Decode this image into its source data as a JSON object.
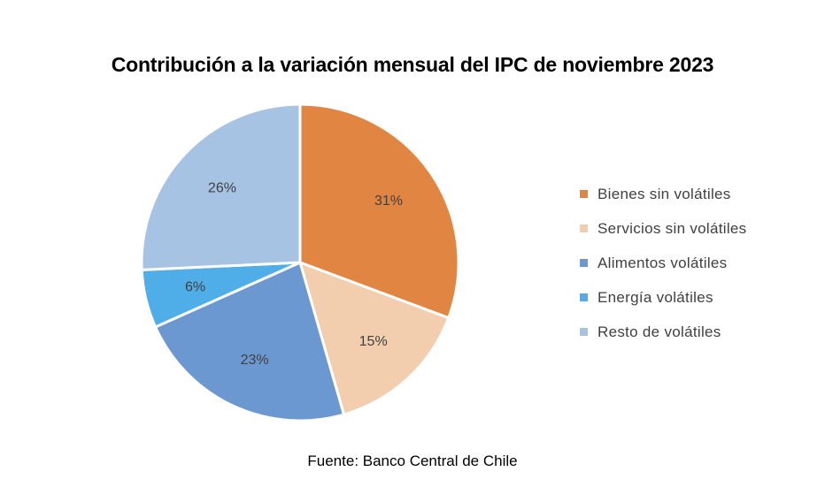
{
  "chart_data": {
    "type": "pie",
    "title": "Contribución a la variación mensual del IPC de noviembre 2023",
    "slices": [
      {
        "name": "Bienes sin volátiles",
        "value": 31,
        "label": "31%",
        "color": "#E08542"
      },
      {
        "name": "Servicios sin volátiles",
        "value": 15,
        "label": "15%",
        "color": "#F2CEAF"
      },
      {
        "name": "Alimentos volátiles",
        "value": 23,
        "label": "23%",
        "color": "#6B98D1"
      },
      {
        "name": "Energía volátiles",
        "value": 6,
        "label": "6%",
        "color": "#4FAEE8"
      },
      {
        "name": "Resto de volátiles",
        "value": 26,
        "label": "26%",
        "color": "#A7C3E3"
      }
    ],
    "legend_position": "right",
    "source": "Fuente: Banco Central de Chile"
  }
}
